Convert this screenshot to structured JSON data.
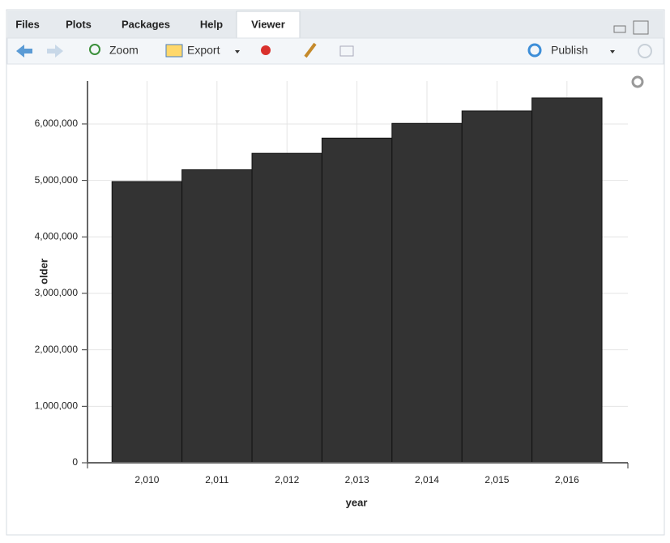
{
  "tabs": [
    "Files",
    "Plots",
    "Packages",
    "Help",
    "Viewer"
  ],
  "toolbar": {
    "zoom": "Zoom",
    "export": "Export",
    "publish": "Publish"
  },
  "chart_data": {
    "type": "bar",
    "x_label": "year",
    "y_label": "older",
    "x": [
      2010,
      2011,
      2012,
      2013,
      2014,
      2015,
      2016
    ],
    "values": [
      4980000,
      5190000,
      5480000,
      5750000,
      6010000,
      6230000,
      6460000
    ],
    "color": "#333333",
    "xlim": [
      2009.15,
      2016.87
    ],
    "xticks": [
      {
        "value": 2010,
        "label": "2,010"
      },
      {
        "value": 2011,
        "label": "2,011"
      },
      {
        "value": 2012,
        "label": "2,012"
      },
      {
        "value": 2013,
        "label": "2,013"
      },
      {
        "value": 2014,
        "label": "2,014"
      },
      {
        "value": 2015,
        "label": "2,015"
      },
      {
        "value": 2016,
        "label": "2,016"
      }
    ],
    "ylim": [
      0,
      6760000
    ],
    "yticks": [
      0,
      {
        "value": 1000000,
        "label": "1,000,000"
      },
      {
        "value": 2000000,
        "label": "2,000,000"
      },
      {
        "value": 3000000,
        "label": "3,000,000"
      },
      {
        "value": 4000000,
        "label": "4,000,000"
      },
      {
        "value": 5000000,
        "label": "5,000,000"
      },
      {
        "value": 6000000,
        "label": "6,000,000"
      }
    ],
    "grid": true
  }
}
